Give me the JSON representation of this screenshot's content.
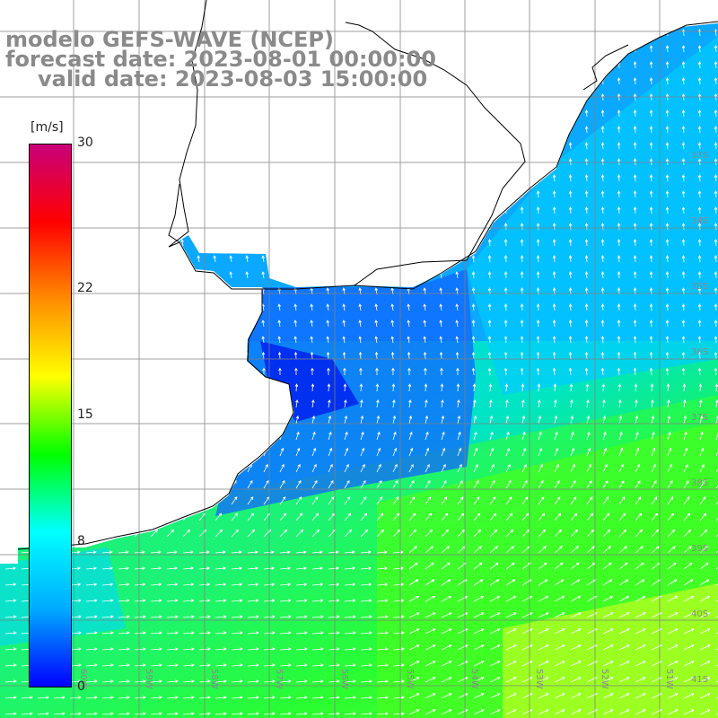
{
  "title": {
    "model": "modelo GEFS-WAVE (NCEP)",
    "forecast": "forecast date: 2023-08-01 00:00:00",
    "valid": "valid date: 2023-08-03 15:00:00"
  },
  "legend": {
    "unit": "[m/s]",
    "ticks": [
      "30",
      "22",
      "15",
      "8",
      "0"
    ],
    "tick_values": [
      30,
      22,
      15,
      8,
      0
    ],
    "range": [
      0,
      30
    ],
    "colors": [
      "#0000ff",
      "#00aaff",
      "#00ffff",
      "#00ff00",
      "#ffff00",
      "#ff8c00",
      "#ff0000",
      "#c8007a"
    ]
  },
  "map": {
    "variable": "wind speed and direction",
    "lat_labels": [
      "33S",
      "34S",
      "35S",
      "36S",
      "37S",
      "38S",
      "39S",
      "40S",
      "41S"
    ],
    "lon_labels": [
      "60W",
      "59W",
      "58W",
      "57W",
      "56W",
      "55W",
      "54W",
      "53W",
      "52W",
      "51W"
    ],
    "colors": {
      "land": "#ffffff",
      "coast": "#000000",
      "grid": "#808080",
      "arrow": "#ffffff"
    }
  }
}
